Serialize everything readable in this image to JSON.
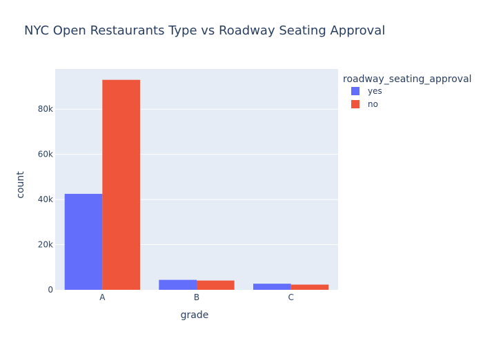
{
  "chart_data": {
    "type": "bar",
    "title": "NYC Open Restaurants Type vs Roadway Seating Approval",
    "xlabel": "grade",
    "ylabel": "count",
    "categories": [
      "A",
      "B",
      "C"
    ],
    "series": [
      {
        "name": "yes",
        "values": [
          42500,
          4400,
          2700
        ],
        "color": "#636efa"
      },
      {
        "name": "no",
        "values": [
          93000,
          4100,
          2300
        ],
        "color": "#ef553b"
      }
    ],
    "ylim": [
      0,
      97800
    ],
    "yticks": [
      0,
      20000,
      40000,
      60000,
      80000
    ],
    "ytick_labels": [
      "0",
      "20k",
      "40k",
      "60k",
      "80k"
    ],
    "legend_title": "roadway_seating_approval",
    "legend_placement": "top-right",
    "plot_background": "#e5ecf6",
    "grid": true
  }
}
